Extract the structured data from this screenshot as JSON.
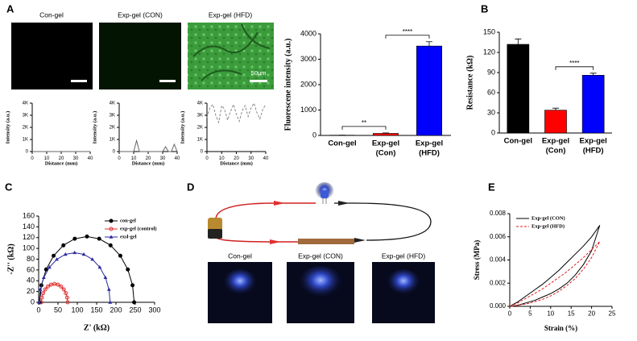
{
  "figure": {
    "panel_labels": [
      "A",
      "B",
      "C",
      "D",
      "E"
    ],
    "image_labels": [
      "Con-gel",
      "Exp-gel (CON)",
      "Exp-gel (HFD)"
    ],
    "scale_bar": "50μm",
    "photo_labels": [
      "Con-gel",
      "Exp-gel (CON)",
      "Exp-gel (HFD)"
    ]
  },
  "chart_data": [
    {
      "type": "line",
      "x_label": "Distance (mm)",
      "y_label": "Intensity (a.u.)",
      "x": [
        0,
        2,
        4,
        6,
        8,
        10,
        12,
        14,
        16,
        18,
        20,
        22,
        24,
        26,
        28,
        30,
        32,
        34,
        36,
        38,
        40
      ],
      "series": [
        {
          "color": "#666666",
          "values": [
            0,
            0,
            0,
            0,
            0,
            0,
            0,
            0,
            0,
            0,
            0,
            0,
            0,
            0,
            0,
            0,
            0,
            0,
            0,
            0,
            0
          ]
        }
      ],
      "xlim": [
        0,
        40
      ],
      "xticks": [
        0,
        10,
        20,
        30,
        40
      ],
      "ylim": [
        0,
        4000
      ],
      "yticks": [
        0,
        {
          "value": 1000,
          "label": "1K"
        },
        {
          "value": 2000,
          "label": "2K"
        },
        {
          "value": 3000,
          "label": "3K"
        },
        {
          "value": 4000,
          "label": "4K"
        }
      ]
    },
    {
      "type": "line",
      "x_label": "Distance (mm)",
      "y_label": "Intensity (a.u.)",
      "x": [
        0,
        2,
        4,
        6,
        8,
        10,
        12,
        14,
        16,
        18,
        20,
        22,
        24,
        26,
        28,
        30,
        32,
        34,
        36,
        38,
        40
      ],
      "series": [
        {
          "color": "#666666",
          "values": [
            0,
            0,
            0,
            0,
            0,
            0,
            900,
            0,
            0,
            0,
            0,
            0,
            0,
            0,
            0,
            0,
            400,
            0,
            0,
            600,
            0
          ]
        }
      ],
      "xlim": [
        0,
        40
      ],
      "xticks": [
        0,
        10,
        20,
        30,
        40
      ],
      "ylim": [
        0,
        4000
      ],
      "yticks": [
        0,
        {
          "value": 1000,
          "label": "1K"
        },
        {
          "value": 2000,
          "label": "2K"
        },
        {
          "value": 3000,
          "label": "3K"
        },
        {
          "value": 4000,
          "label": "4K"
        }
      ]
    },
    {
      "type": "line",
      "x_label": "Distance (mm)",
      "y_label": "Intensity (a.u.)",
      "x": [
        0,
        2,
        4,
        6,
        8,
        10,
        12,
        14,
        16,
        18,
        20,
        22,
        24,
        26,
        28,
        30,
        32,
        34,
        36,
        38,
        40
      ],
      "series": [
        {
          "color": "#888888",
          "dash": true,
          "values": [
            2800,
            3600,
            3900,
            3000,
            2400,
            3800,
            3500,
            2600,
            3300,
            3900,
            3100,
            2500,
            3400,
            3800,
            2900,
            3600,
            4000,
            3200,
            2700,
            3500,
            3900
          ]
        }
      ],
      "xlim": [
        0,
        40
      ],
      "xticks": [
        0,
        10,
        20,
        30,
        40
      ],
      "ylim": [
        0,
        4000
      ],
      "yticks": [
        0,
        {
          "value": 1000,
          "label": "1K"
        },
        {
          "value": 2000,
          "label": "2K"
        },
        {
          "value": 3000,
          "label": "3K"
        },
        {
          "value": 4000,
          "label": "4K"
        }
      ]
    },
    {
      "type": "bar",
      "y_label": "Fluorescene intensity (a.u.)",
      "categories": [
        [
          "Con-gel"
        ],
        [
          "Exp-gel",
          "(Con)"
        ],
        [
          "Exp-gel",
          "(HFD)"
        ]
      ],
      "values": [
        10,
        80,
        3520
      ],
      "errors": [
        0,
        20,
        170
      ],
      "colors": [
        "#000000",
        "#ff0000",
        "#0000ff"
      ],
      "ylim": [
        0,
        4000
      ],
      "yticks": [
        0,
        1000,
        2000,
        3000,
        4000
      ],
      "significance": [
        {
          "from": 0,
          "to": 1,
          "label": "**"
        },
        {
          "from": 1,
          "to": 2,
          "label": "****"
        }
      ]
    },
    {
      "type": "bar",
      "y_label": "Resistance (kΩ)",
      "categories": [
        [
          "Con-gel"
        ],
        [
          "Exp-gel",
          "(Con)"
        ],
        [
          "Exp-gel",
          "(HFD)"
        ]
      ],
      "values": [
        132,
        34,
        86
      ],
      "errors": [
        8,
        3,
        3
      ],
      "colors": [
        "#000000",
        "#ff0000",
        "#0000ff"
      ],
      "ylim": [
        0,
        150
      ],
      "yticks": [
        0,
        30,
        60,
        90,
        120,
        150
      ],
      "significance": [
        {
          "from": 1,
          "to": 2,
          "label": "****"
        }
      ]
    },
    {
      "type": "line",
      "x_label": "Z' (kΩ)",
      "y_label": "-Z'' (kΩ)",
      "legend": "upper right",
      "series": [
        {
          "name": "con-gel",
          "color": "#000000",
          "marker": "circle",
          "x": [
            3,
            7.1,
            19.3,
            38.7,
            64,
            93.4,
            125,
            156.6,
            186,
            211.3,
            230.7,
            242.9,
            247
          ],
          "values": [
            0,
            31.6,
            61,
            86.3,
            105.7,
            117.9,
            122,
            117.9,
            105.7,
            86.3,
            61,
            31.6,
            0
          ]
        },
        {
          "name": "exp-gel (control)",
          "color": "#e03030",
          "marker": "open-circle",
          "x": [
            7,
            8.2,
            11.6,
            17,
            24,
            32.2,
            41,
            49.8,
            58,
            65,
            70.4,
            73.8,
            75
          ],
          "values": [
            0,
            8.8,
            17,
            24,
            29.4,
            32.8,
            34,
            32.8,
            29.4,
            24,
            17,
            8.8,
            0
          ]
        },
        {
          "name": "exsl-gel",
          "color": "#2a2aa0",
          "marker": "triangle",
          "x": [
            1,
            4.1,
            13.3,
            27.9,
            47,
            69.2,
            93,
            116.8,
            139,
            158.1,
            172.7,
            181.9,
            185
          ],
          "values": [
            0,
            23.8,
            46,
            65,
            79.7,
            88.9,
            92,
            88.9,
            79.7,
            65,
            46,
            23.8,
            0
          ]
        }
      ],
      "xlim": [
        0,
        300
      ],
      "xticks": [
        0,
        50,
        100,
        150,
        200,
        250,
        300
      ],
      "ylim": [
        0,
        160
      ],
      "yticks": [
        0,
        20,
        40,
        60,
        80,
        100,
        120,
        140,
        160
      ]
    },
    {
      "type": "line",
      "x_label": "Strain (%)",
      "y_label": "Stress (MPa)",
      "legend": "upper left",
      "series": [
        {
          "name": "Exp-gel (CON)",
          "color": "#000000",
          "x": [
            0,
            2,
            4,
            6,
            8,
            10,
            12,
            14,
            16,
            18,
            20,
            22,
            20,
            18,
            16,
            14,
            12,
            10,
            8,
            6,
            4,
            2,
            0.5
          ],
          "values": [
            0,
            0.0004,
            0.0009,
            0.0014,
            0.0019,
            0.0025,
            0.0031,
            0.0038,
            0.0045,
            0.0052,
            0.006,
            0.007,
            0.0048,
            0.0036,
            0.0027,
            0.002,
            0.0015,
            0.0011,
            0.0008,
            0.0005,
            0.0003,
            0.0001,
            0
          ]
        },
        {
          "name": "Exp-gel (HFD)",
          "color": "#e02020",
          "dash": true,
          "x": [
            0,
            2,
            4,
            6,
            8,
            10,
            12,
            14,
            16,
            18,
            20,
            22,
            20,
            18,
            16,
            14,
            12,
            10,
            8,
            6,
            4,
            2,
            0.5
          ],
          "values": [
            0,
            0.0003,
            0.0007,
            0.0011,
            0.0015,
            0.002,
            0.0025,
            0.003,
            0.0036,
            0.0042,
            0.0049,
            0.0056,
            0.0042,
            0.0032,
            0.0024,
            0.0018,
            0.0013,
            0.0009,
            0.0006,
            0.0004,
            0.0002,
            0.0001,
            0
          ]
        }
      ],
      "xlim": [
        0,
        25
      ],
      "xticks": [
        0,
        5,
        10,
        15,
        20,
        25
      ],
      "ylim": [
        0,
        0.008
      ],
      "yticks": [
        {
          "value": 0,
          "label": "0.000"
        },
        {
          "value": 0.002,
          "label": "0.002"
        },
        {
          "value": 0.004,
          "label": "0.004"
        },
        {
          "value": 0.006,
          "label": "0.006"
        },
        {
          "value": 0.008,
          "label": "0.008"
        }
      ]
    }
  ]
}
